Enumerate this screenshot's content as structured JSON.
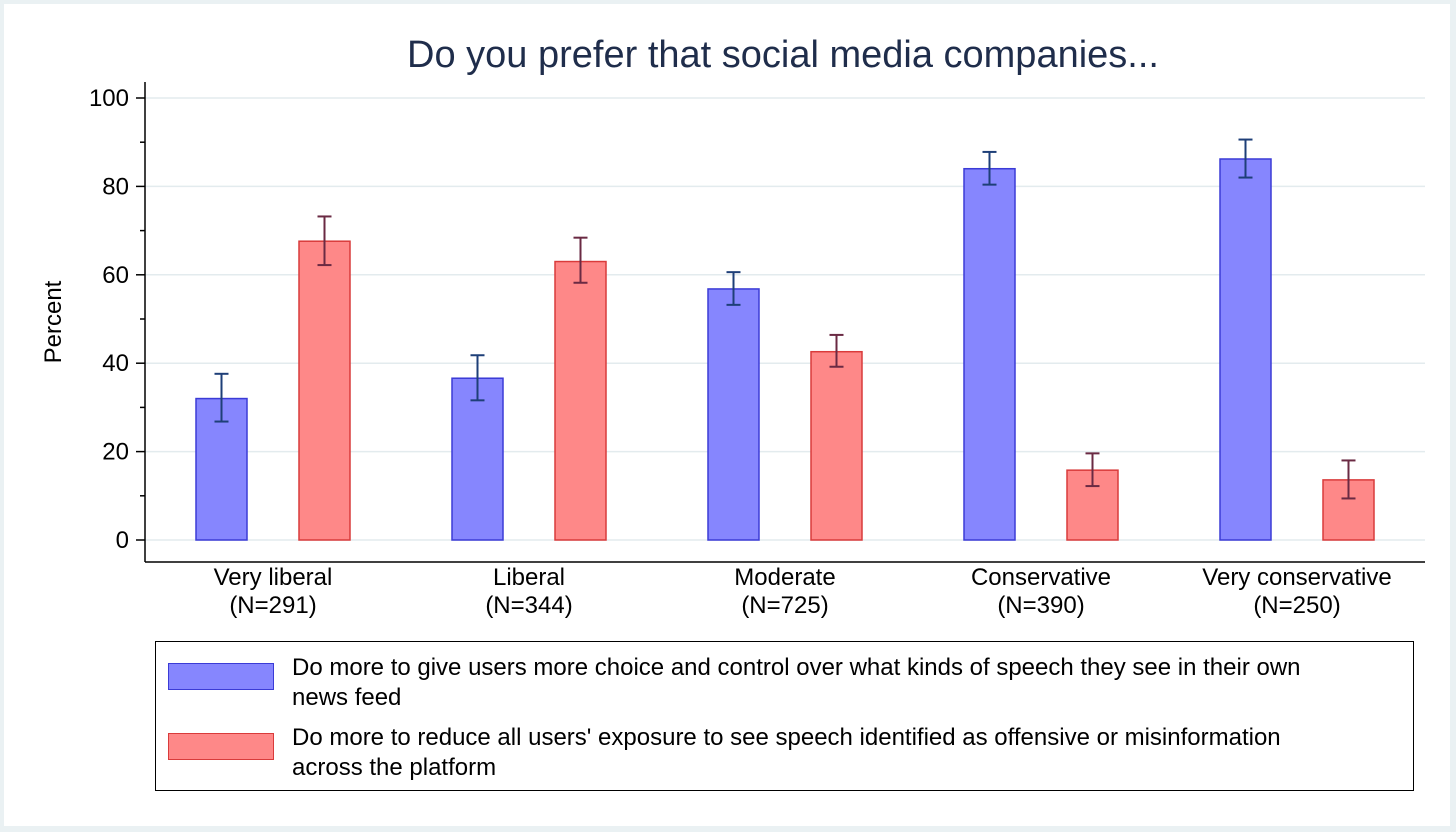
{
  "chart_data": {
    "type": "bar",
    "title": "Do you prefer that social media companies...",
    "xlabel": "",
    "ylabel": "Percent",
    "ylim": [
      0,
      100
    ],
    "yticks": [
      0,
      20,
      40,
      60,
      80,
      100
    ],
    "yticks_label": [
      "0",
      "20",
      "40",
      "60",
      "80",
      "100"
    ],
    "grid": true,
    "legend_position": "bottom",
    "categories": [
      {
        "name": "Very liberal",
        "n": "(N=291)"
      },
      {
        "name": "Liberal",
        "n": "(N=344)"
      },
      {
        "name": "Moderate",
        "n": "(N=725)"
      },
      {
        "name": "Conservative",
        "n": "(N=390)"
      },
      {
        "name": "Very conservative",
        "n": "(N=250)"
      }
    ],
    "series": [
      {
        "name": "Do more to give users more choice and control over what kinds of speech they see in their own news feed",
        "fill": "#8686fe",
        "stroke": "#3b3bd6",
        "errcolor": "#1e3f78",
        "values": [
          32.0,
          36.6,
          56.8,
          84.0,
          86.2
        ],
        "ci_low": [
          26.8,
          31.6,
          53.2,
          80.4,
          82.0
        ],
        "ci_high": [
          37.6,
          41.8,
          60.6,
          87.8,
          90.6
        ]
      },
      {
        "name": "Do more to reduce all users' exposure to see speech identified as offensive or misinformation across the platform",
        "fill": "#fe8888",
        "stroke": "#d93b3b",
        "errcolor": "#6a2a43",
        "values": [
          67.6,
          63.0,
          42.6,
          15.8,
          13.6
        ],
        "ci_low": [
          62.2,
          58.2,
          39.2,
          12.2,
          9.4
        ],
        "ci_high": [
          73.2,
          68.4,
          46.4,
          19.6,
          18.0
        ]
      }
    ]
  }
}
